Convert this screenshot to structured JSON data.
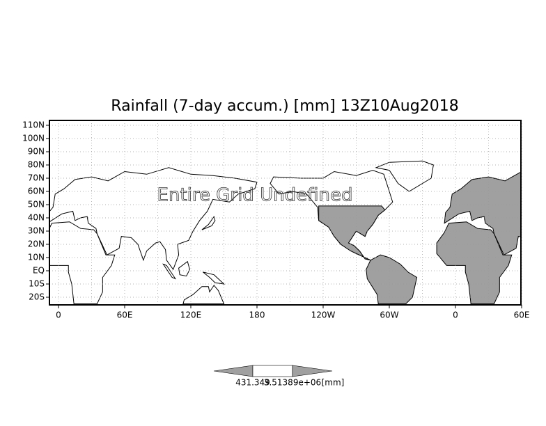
{
  "title": "Rainfall (7-day accum.) [mm] 13Z10Aug2018",
  "annotation": "Entire Grid Undefined",
  "lat_labels": [
    "110N",
    "100N",
    "90N",
    "80N",
    "70N",
    "60N",
    "50N",
    "40N",
    "30N",
    "20N",
    "10N",
    "EQ",
    "10S",
    "20S"
  ],
  "lon_labels": [
    "0",
    "60E",
    "120E",
    "180",
    "120W",
    "60W",
    "0",
    "60E"
  ],
  "colorbar": {
    "labels": [
      "431.349",
      "3.51389e+06",
      "[mm]"
    ]
  }
}
